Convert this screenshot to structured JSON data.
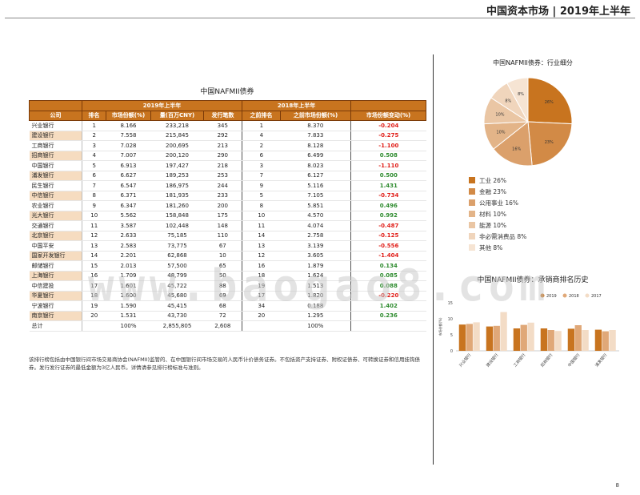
{
  "header": {
    "title": "中国资本市场 | 2019年上半年"
  },
  "page_number": "8",
  "table": {
    "title": "中国NAFMII债券",
    "group_h1_2019": "2019年上半年",
    "group_h1_2018": "2018年上半年",
    "columns": {
      "company": "公司",
      "rank": "排名",
      "share": "市场份额(%)",
      "amount": "量(百万CNY)",
      "deals": "发行笔数",
      "prev_rank": "之前排名",
      "prev_share": "之前市场份额(%)",
      "share_change": "市场份额变动(%)"
    },
    "rows": [
      {
        "bank": "兴业银行",
        "rank": "1",
        "share": "8.166",
        "amount": "233,218",
        "deals": "345",
        "prev_rank": "1",
        "prev_share": "8.370",
        "change": "-0.204",
        "highlight": false,
        "change_color": "#e0201a"
      },
      {
        "bank": "建设银行",
        "rank": "2",
        "share": "7.558",
        "amount": "215,845",
        "deals": "292",
        "prev_rank": "4",
        "prev_share": "7.833",
        "change": "-0.275",
        "highlight": true,
        "change_color": "#e0201a"
      },
      {
        "bank": "工商银行",
        "rank": "3",
        "share": "7.028",
        "amount": "200,695",
        "deals": "213",
        "prev_rank": "2",
        "prev_share": "8.128",
        "change": "-1.100",
        "highlight": false,
        "change_color": "#e0201a"
      },
      {
        "bank": "招商银行",
        "rank": "4",
        "share": "7.007",
        "amount": "200,120",
        "deals": "290",
        "prev_rank": "6",
        "prev_share": "6.499",
        "change": "0.508",
        "highlight": true,
        "change_color": "#2e8b2e"
      },
      {
        "bank": "中国银行",
        "rank": "5",
        "share": "6.913",
        "amount": "197,427",
        "deals": "218",
        "prev_rank": "3",
        "prev_share": "8.023",
        "change": "-1.110",
        "highlight": false,
        "change_color": "#e0201a"
      },
      {
        "bank": "浦发银行",
        "rank": "6",
        "share": "6.627",
        "amount": "189,253",
        "deals": "253",
        "prev_rank": "7",
        "prev_share": "6.127",
        "change": "0.500",
        "highlight": true,
        "change_color": "#2e8b2e"
      },
      {
        "bank": "民生银行",
        "rank": "7",
        "share": "6.547",
        "amount": "186,975",
        "deals": "244",
        "prev_rank": "9",
        "prev_share": "5.116",
        "change": "1.431",
        "highlight": false,
        "change_color": "#2e8b2e"
      },
      {
        "bank": "中信银行",
        "rank": "8",
        "share": "6.371",
        "amount": "181,935",
        "deals": "233",
        "prev_rank": "5",
        "prev_share": "7.105",
        "change": "-0.734",
        "highlight": true,
        "change_color": "#e0201a"
      },
      {
        "bank": "农业银行",
        "rank": "9",
        "share": "6.347",
        "amount": "181,260",
        "deals": "200",
        "prev_rank": "8",
        "prev_share": "5.851",
        "change": "0.496",
        "highlight": false,
        "change_color": "#2e8b2e"
      },
      {
        "bank": "光大银行",
        "rank": "10",
        "share": "5.562",
        "amount": "158,848",
        "deals": "175",
        "prev_rank": "10",
        "prev_share": "4.570",
        "change": "0.992",
        "highlight": true,
        "change_color": "#2e8b2e"
      },
      {
        "bank": "交通银行",
        "rank": "11",
        "share": "3.587",
        "amount": "102,448",
        "deals": "148",
        "prev_rank": "11",
        "prev_share": "4.074",
        "change": "-0.487",
        "highlight": false,
        "change_color": "#e0201a"
      },
      {
        "bank": "北京银行",
        "rank": "12",
        "share": "2.633",
        "amount": "75,185",
        "deals": "110",
        "prev_rank": "14",
        "prev_share": "2.758",
        "change": "-0.125",
        "highlight": true,
        "change_color": "#e0201a"
      },
      {
        "bank": "中国平安",
        "rank": "13",
        "share": "2.583",
        "amount": "73,775",
        "deals": "67",
        "prev_rank": "13",
        "prev_share": "3.139",
        "change": "-0.556",
        "highlight": false,
        "change_color": "#e0201a"
      },
      {
        "bank": "国家开发银行",
        "rank": "14",
        "share": "2.201",
        "amount": "62,868",
        "deals": "10",
        "prev_rank": "12",
        "prev_share": "3.605",
        "change": "-1.404",
        "highlight": true,
        "change_color": "#e0201a"
      },
      {
        "bank": "邮储银行",
        "rank": "15",
        "share": "2.013",
        "amount": "57,500",
        "deals": "65",
        "prev_rank": "16",
        "prev_share": "1.879",
        "change": "0.134",
        "highlight": false,
        "change_color": "#2e8b2e"
      },
      {
        "bank": "上海银行",
        "rank": "16",
        "share": "1.709",
        "amount": "48,799",
        "deals": "50",
        "prev_rank": "18",
        "prev_share": "1.624",
        "change": "0.085",
        "highlight": true,
        "change_color": "#2e8b2e"
      },
      {
        "bank": "中信建投",
        "rank": "17",
        "share": "1.601",
        "amount": "45,722",
        "deals": "88",
        "prev_rank": "19",
        "prev_share": "1.513",
        "change": "0.088",
        "highlight": false,
        "change_color": "#2e8b2e"
      },
      {
        "bank": "华夏银行",
        "rank": "18",
        "share": "1.600",
        "amount": "45,680",
        "deals": "69",
        "prev_rank": "17",
        "prev_share": "1.820",
        "change": "-0.220",
        "highlight": true,
        "change_color": "#e0201a"
      },
      {
        "bank": "宁波银行",
        "rank": "19",
        "share": "1.590",
        "amount": "45,415",
        "deals": "68",
        "prev_rank": "34",
        "prev_share": "0.188",
        "change": "1.402",
        "highlight": false,
        "change_color": "#2e8b2e"
      },
      {
        "bank": "南京银行",
        "rank": "20",
        "share": "1.531",
        "amount": "43,730",
        "deals": "72",
        "prev_rank": "20",
        "prev_share": "1.295",
        "change": "0.236",
        "highlight": true,
        "change_color": "#2e8b2e"
      }
    ],
    "total": {
      "label": "总计",
      "share": "100%",
      "amount": "2,855,805",
      "deals": "2,608",
      "prev_share": "100%"
    }
  },
  "footnote": "该排行榜包括由中国银行间市场交易商协会(NAFMII)监管的、在中国银行间市场交易的人民币计价债务证券。不包括资产支持证券、附权证债券、可转换证券和信用挂钩债券。发行发行证券的最低金额为3亿人民币。详情请参见排行榜标准与准则。",
  "watermark": "www.baogao8.com",
  "chart_data": [
    {
      "type": "pie",
      "title": "中国NAFMII债券：行业细分",
      "slices": [
        {
          "label": "工业 26%",
          "value": 26,
          "display": "26%",
          "color": "#c8741f"
        },
        {
          "label": "金融 23%",
          "value": 23,
          "display": "23%",
          "color": "#d28a46"
        },
        {
          "label": "公用事业 16%",
          "value": 16,
          "display": "16%",
          "color": "#dba06b"
        },
        {
          "label": "材料 10%",
          "value": 10,
          "display": "10%",
          "color": "#e3b488"
        },
        {
          "label": "能源 10%",
          "value": 10,
          "display": "10%",
          "color": "#eac6a4"
        },
        {
          "label": "非必需消费品 8%",
          "value": 8,
          "display": "8%",
          "color": "#f0d5bc"
        },
        {
          "label": "其他 8%",
          "value": 8,
          "display": "8%",
          "color": "#f6e4d3"
        }
      ]
    },
    {
      "type": "bar",
      "title": "中国NAFMII债券：承销商排名历史",
      "ylabel": "市场份额(%)",
      "ylim": [
        0,
        15
      ],
      "yticks": [
        "0",
        "5",
        "10",
        "15"
      ],
      "categories": [
        "兴业银行",
        "建设银行",
        "工商银行",
        "招商银行",
        "中国银行",
        "浦发银行"
      ],
      "series": [
        {
          "name": "2019",
          "values": [
            8.2,
            7.6,
            7.0,
            7.0,
            6.9,
            6.6
          ],
          "color": "#c8741f"
        },
        {
          "name": "2018",
          "values": [
            8.4,
            7.8,
            8.1,
            6.5,
            8.0,
            6.1
          ],
          "color": "#e0a878"
        },
        {
          "name": "2017",
          "values": [
            8.9,
            12.1,
            8.8,
            6.2,
            6.5,
            6.5
          ],
          "color": "#f3dcc6"
        }
      ]
    }
  ]
}
